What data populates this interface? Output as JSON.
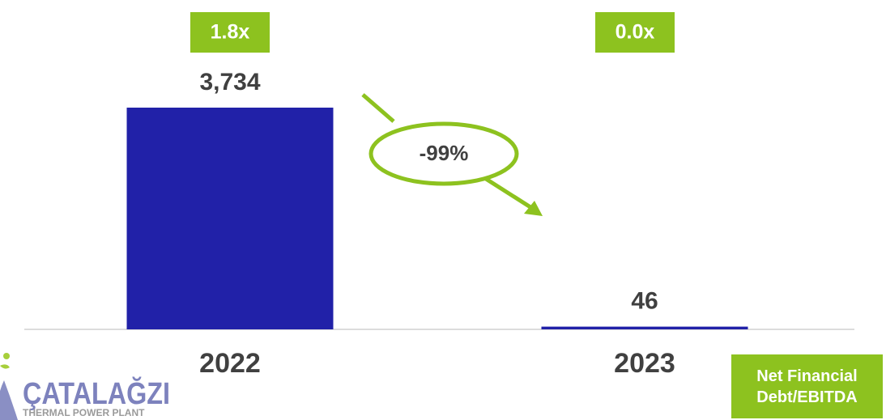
{
  "chart_data": {
    "type": "bar",
    "categories": [
      "2022",
      "2023"
    ],
    "values": [
      3734,
      46
    ],
    "value_labels": [
      "3,734",
      "46"
    ],
    "color": "#2121a8",
    "ratio": {
      "name": "Net Financial Debt/EBITDA",
      "values": [
        1.8,
        0.0
      ],
      "value_labels": [
        "1.8x",
        "0.0x"
      ],
      "color": "#8dc21f"
    },
    "change_annotation": "-99%"
  },
  "logo": {
    "name": "ÇATALAĞZI",
    "tagline": "THERMAL POWER PLANT"
  }
}
